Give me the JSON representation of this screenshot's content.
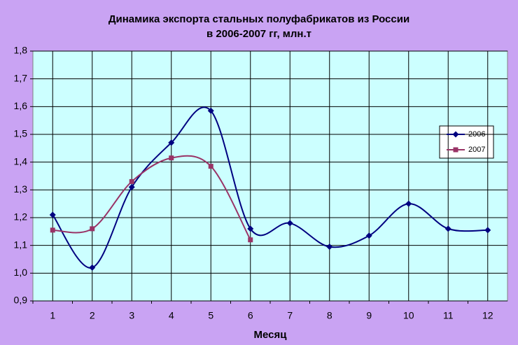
{
  "chart_data": {
    "type": "line",
    "title": [
      "Динамика экспорта стальных полуфабрикатов из России",
      "в 2006-2007 гг, млн.т"
    ],
    "x_label": "Месяц",
    "categories": [
      "1",
      "2",
      "3",
      "4",
      "5",
      "6",
      "7",
      "8",
      "9",
      "10",
      "11",
      "12"
    ],
    "series": [
      {
        "name": "2006",
        "color": "#000080",
        "marker": "diamond",
        "values": [
          1.21,
          1.02,
          1.31,
          1.47,
          1.585,
          1.16,
          1.18,
          1.095,
          1.135,
          1.25,
          1.16,
          1.155
        ]
      },
      {
        "name": "2007",
        "color": "#993366",
        "marker": "square",
        "values": [
          1.155,
          1.16,
          1.33,
          1.415,
          1.385,
          1.12,
          null,
          null,
          null,
          null,
          null,
          null
        ]
      }
    ],
    "ylim": [
      0.9,
      1.8
    ],
    "yticks": [
      {
        "value": 0.9,
        "label": "0,9"
      },
      {
        "value": 1.0,
        "label": "1,0"
      },
      {
        "value": 1.1,
        "label": "1,1"
      },
      {
        "value": 1.2,
        "label": "1,2"
      },
      {
        "value": 1.3,
        "label": "1,3"
      },
      {
        "value": 1.4,
        "label": "1,4"
      },
      {
        "value": 1.5,
        "label": "1,5"
      },
      {
        "value": 1.6,
        "label": "1,6"
      },
      {
        "value": 1.7,
        "label": "1,7"
      },
      {
        "value": 1.8,
        "label": "1,8"
      }
    ],
    "grid": true,
    "smooth": true,
    "legend": "right"
  }
}
